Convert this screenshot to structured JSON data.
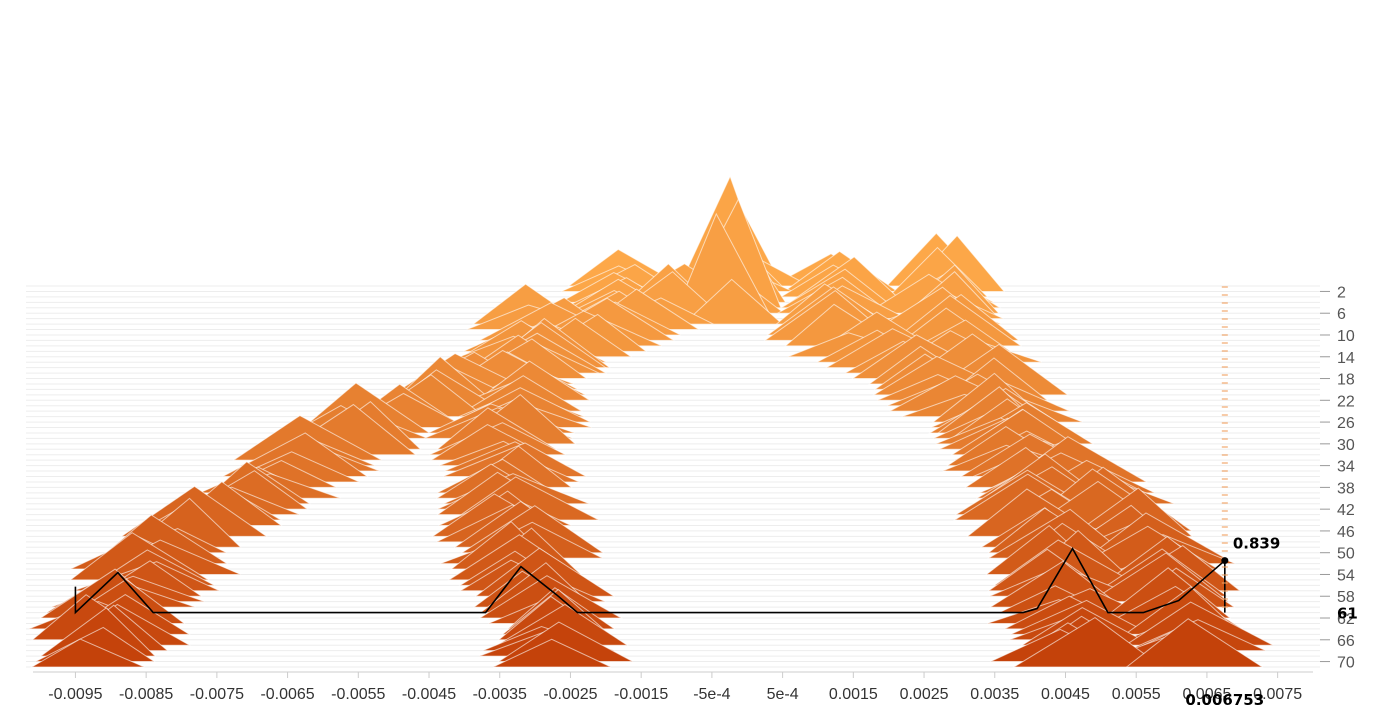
{
  "chart_data": {
    "type": "area",
    "subtype": "stacked-histogram-ridgeline",
    "title": "",
    "xlabel": "",
    "ylabel": "",
    "x_domain": [
      -0.0101,
      0.008
    ],
    "x_ticks": [
      "-0.0095",
      "-0.0085",
      "-0.0075",
      "-0.0065",
      "-0.0055",
      "-0.0045",
      "-0.0035",
      "-0.0025",
      "-0.0015",
      "-5e-4",
      "5e-4",
      "0.0015",
      "0.0025",
      "0.0035",
      "0.0045",
      "0.0055",
      "0.0065",
      "0.0075"
    ],
    "x_tick_values": [
      -0.0095,
      -0.0085,
      -0.0075,
      -0.0065,
      -0.0055,
      -0.0045,
      -0.0035,
      -0.0025,
      -0.0015,
      -0.0005,
      0.0005,
      0.0015,
      0.0025,
      0.0035,
      0.0045,
      0.0055,
      0.0065,
      0.0075
    ],
    "y_ticks": [
      "2",
      "6",
      "10",
      "14",
      "18",
      "22",
      "26",
      "30",
      "34",
      "38",
      "42",
      "46",
      "50",
      "54",
      "58",
      "62",
      "66",
      "70"
    ],
    "step_range": [
      1,
      71
    ],
    "color_scale": [
      "#fda849",
      "#c4420a"
    ],
    "baseline_color": "#ededed",
    "steps_per_cluster": [
      {
        "center": -0.0091,
        "path": "right-arch"
      },
      {
        "center": -0.0032,
        "path": "inner-left"
      },
      {
        "center": 0.0046,
        "path": "inner-right"
      },
      {
        "center": 0.0066,
        "path": "right-column"
      }
    ],
    "peak_amplitude": 0.9,
    "hover": {
      "step": "61",
      "x_value": "0.006753",
      "y_value": "0.839",
      "color": "#000000"
    }
  }
}
